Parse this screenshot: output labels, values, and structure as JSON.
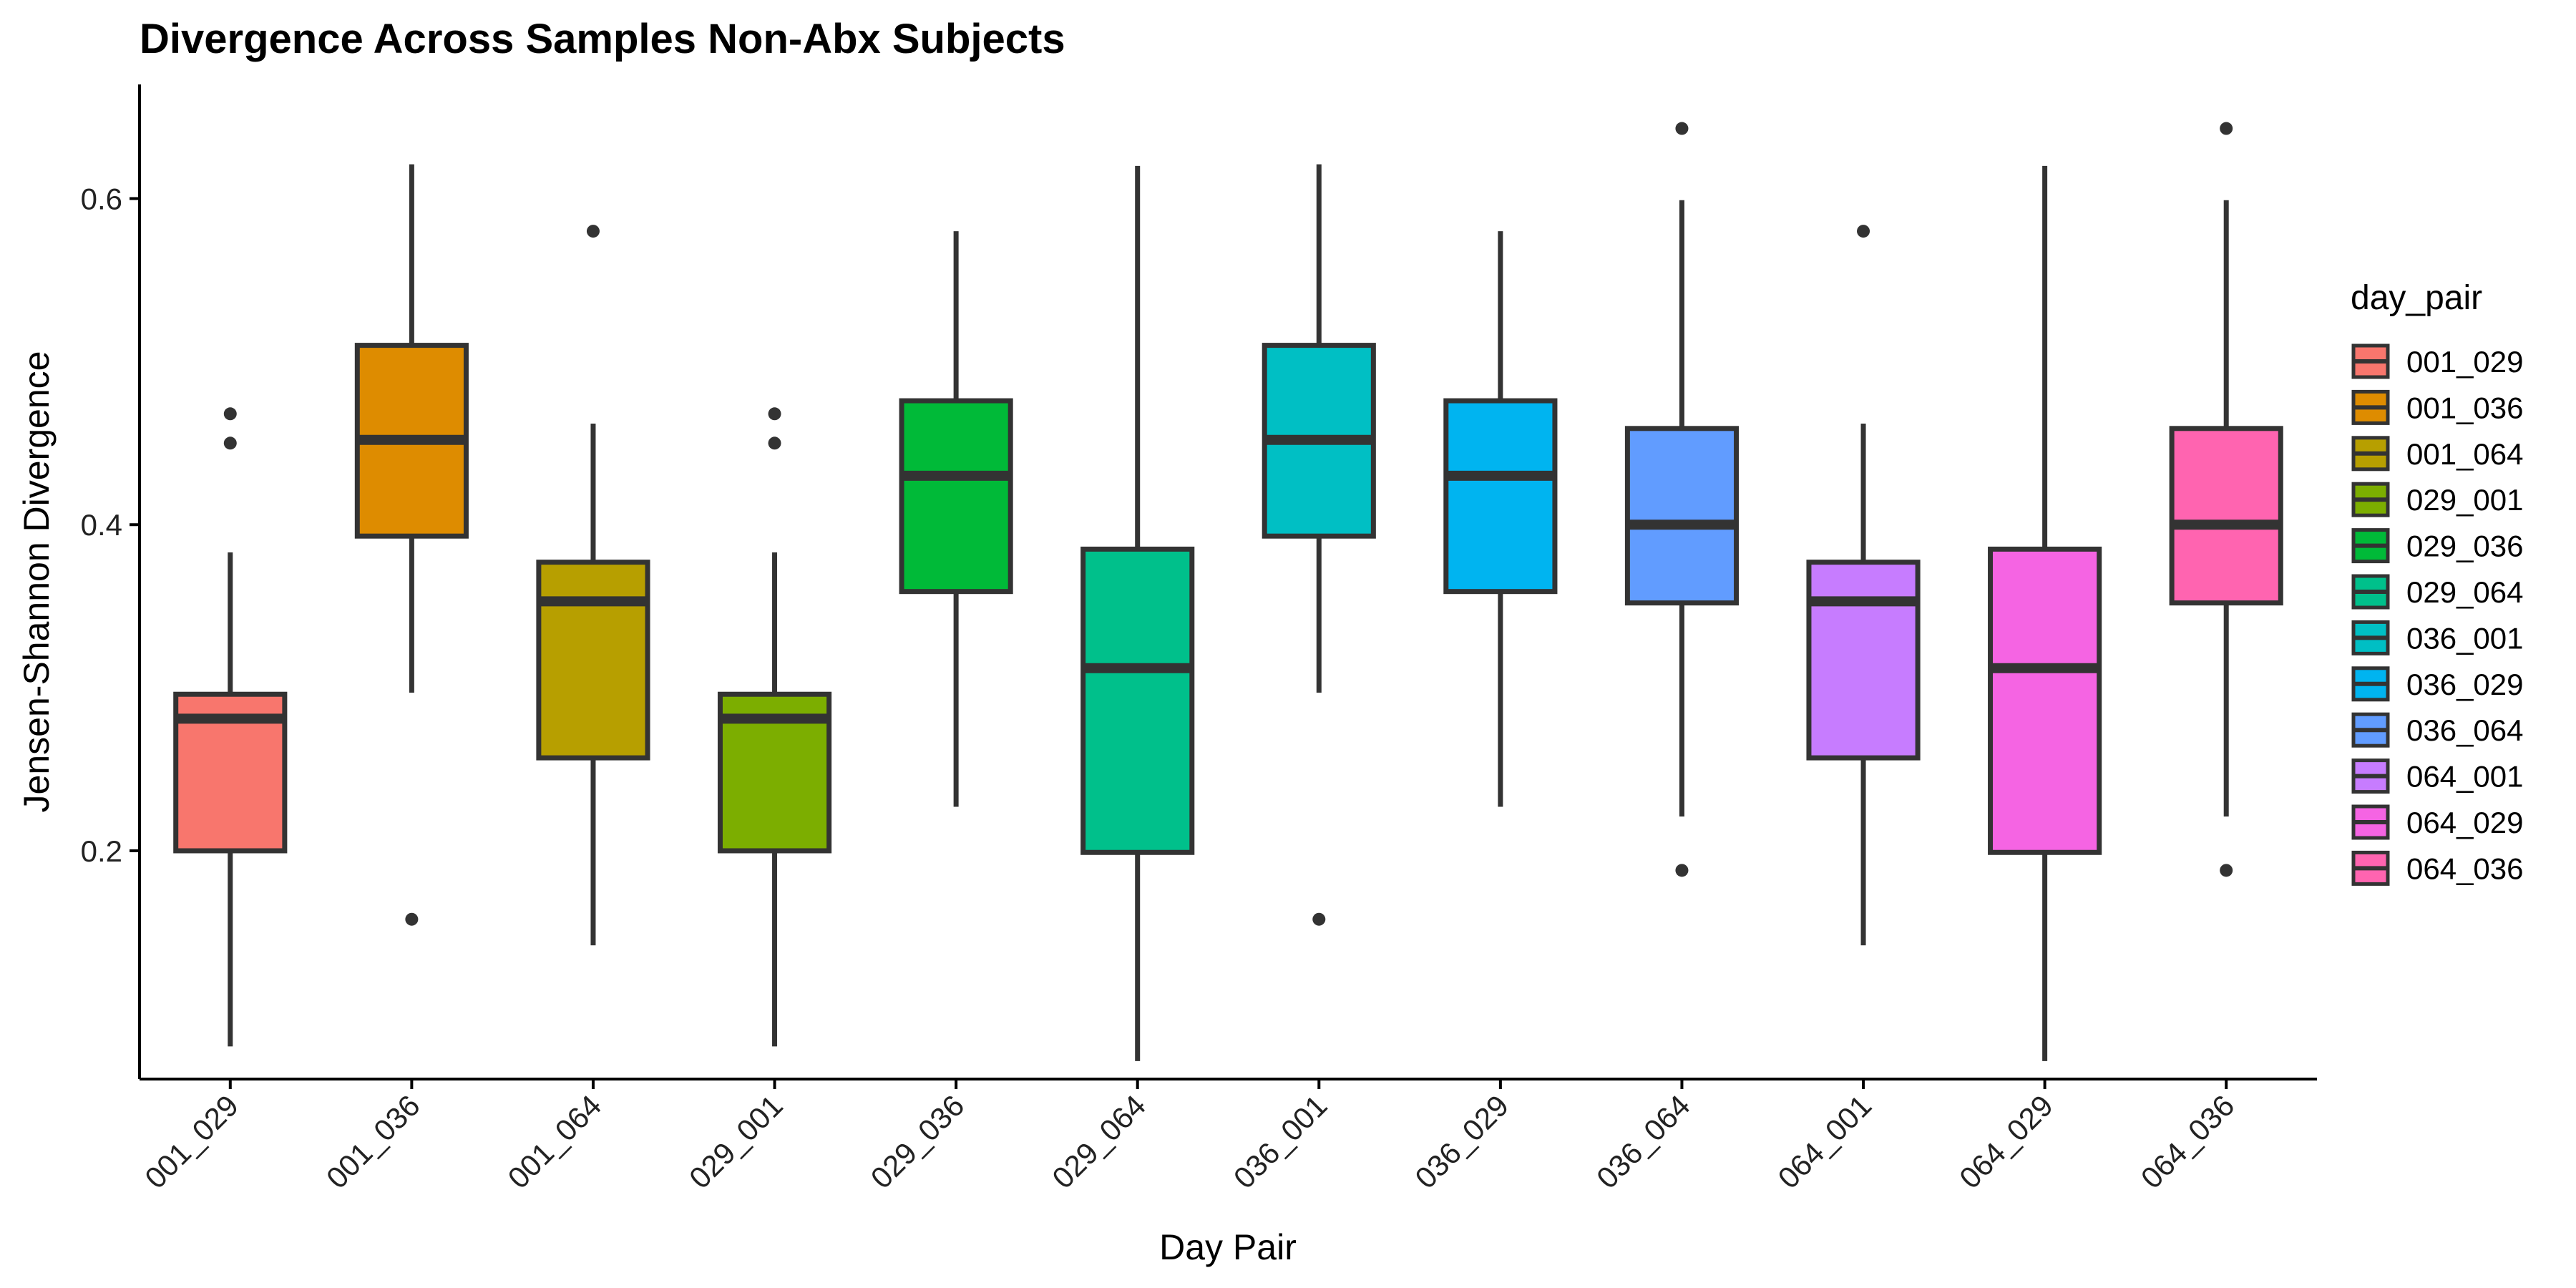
{
  "chart_data": {
    "type": "boxplot",
    "title": "Divergence Across Samples Non-Abx Subjects",
    "xlabel": "Day Pair",
    "ylabel": "Jensen-Shannon Divergence",
    "ylim": [
      0.06,
      0.67
    ],
    "yticks": [
      0.2,
      0.4,
      0.6
    ],
    "ytick_labels": [
      "0.2",
      "0.4",
      "0.6"
    ],
    "grid": false,
    "legend": {
      "title": "day_pair",
      "position": "right"
    },
    "categories": [
      "001_029",
      "001_036",
      "001_064",
      "029_001",
      "029_036",
      "029_064",
      "036_001",
      "036_029",
      "036_064",
      "064_001",
      "064_029",
      "064_036"
    ],
    "boxes": [
      {
        "q1": 0.2,
        "median": 0.281,
        "q3": 0.296,
        "whisker_low": 0.08,
        "whisker_high": 0.383,
        "outliers": [
          0.45,
          0.468
        ],
        "color": "#F8766D"
      },
      {
        "q1": 0.393,
        "median": 0.452,
        "q3": 0.51,
        "whisker_low": 0.297,
        "whisker_high": 0.621,
        "outliers": [
          0.158
        ],
        "color": "#DE8C00"
      },
      {
        "q1": 0.257,
        "median": 0.353,
        "q3": 0.377,
        "whisker_low": 0.142,
        "whisker_high": 0.462,
        "outliers": [
          0.58
        ],
        "color": "#B79F00"
      },
      {
        "q1": 0.2,
        "median": 0.281,
        "q3": 0.296,
        "whisker_low": 0.08,
        "whisker_high": 0.383,
        "outliers": [
          0.45,
          0.468
        ],
        "color": "#7CAE00"
      },
      {
        "q1": 0.359,
        "median": 0.43,
        "q3": 0.476,
        "whisker_low": 0.227,
        "whisker_high": 0.58,
        "outliers": [],
        "color": "#00BA38"
      },
      {
        "q1": 0.199,
        "median": 0.312,
        "q3": 0.385,
        "whisker_low": 0.071,
        "whisker_high": 0.62,
        "outliers": [],
        "color": "#00C08B"
      },
      {
        "q1": 0.393,
        "median": 0.452,
        "q3": 0.51,
        "whisker_low": 0.297,
        "whisker_high": 0.621,
        "outliers": [
          0.158
        ],
        "color": "#00BFC4"
      },
      {
        "q1": 0.359,
        "median": 0.43,
        "q3": 0.476,
        "whisker_low": 0.227,
        "whisker_high": 0.58,
        "outliers": [],
        "color": "#00B4F0"
      },
      {
        "q1": 0.352,
        "median": 0.4,
        "q3": 0.459,
        "whisker_low": 0.221,
        "whisker_high": 0.599,
        "outliers": [
          0.188,
          0.643
        ],
        "color": "#619CFF"
      },
      {
        "q1": 0.257,
        "median": 0.353,
        "q3": 0.377,
        "whisker_low": 0.142,
        "whisker_high": 0.462,
        "outliers": [
          0.58
        ],
        "color": "#C77CFF"
      },
      {
        "q1": 0.199,
        "median": 0.312,
        "q3": 0.385,
        "whisker_low": 0.071,
        "whisker_high": 0.62,
        "outliers": [],
        "color": "#F564E3"
      },
      {
        "q1": 0.352,
        "median": 0.4,
        "q3": 0.459,
        "whisker_low": 0.221,
        "whisker_high": 0.599,
        "outliers": [
          0.188,
          0.643
        ],
        "color": "#FF64B0"
      }
    ]
  }
}
